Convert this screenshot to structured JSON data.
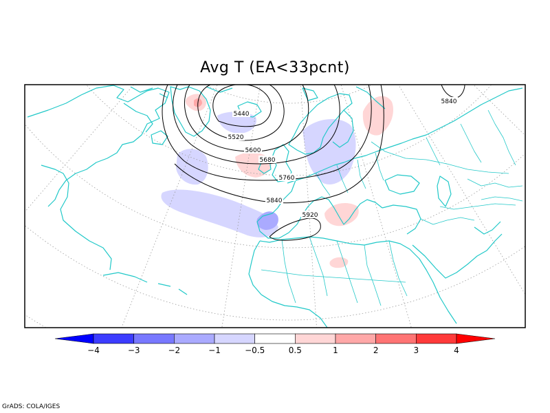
{
  "title": "Avg T (EA<33pcnt)",
  "credit": "GrADS: COLA/IGES",
  "colors": {
    "coast": "#20c8c8",
    "grid": "#9a9a9a",
    "contour": "#000000",
    "frame": "#000000"
  },
  "contours": [
    {
      "value": "5440",
      "label": "5440"
    },
    {
      "value": "5520",
      "label": "5520"
    },
    {
      "value": "5600",
      "label": "5600"
    },
    {
      "value": "5680",
      "label": "5680"
    },
    {
      "value": "5760",
      "label": "5760"
    },
    {
      "value": "5840",
      "label": "5840"
    },
    {
      "value": "5920",
      "label": "5920"
    },
    {
      "value": "5840b",
      "label": "5840"
    }
  ],
  "colorbar": {
    "bins": [
      {
        "color": "#0000ff"
      },
      {
        "color": "#3c3cff"
      },
      {
        "color": "#7878ff"
      },
      {
        "color": "#aaaaff"
      },
      {
        "color": "#d6d6ff"
      },
      {
        "color": "#ffffff"
      },
      {
        "color": "#ffd6d6"
      },
      {
        "color": "#ffa8a8"
      },
      {
        "color": "#ff7474"
      },
      {
        "color": "#ff3a3a"
      },
      {
        "color": "#ff0000"
      }
    ],
    "ticks": [
      "−4",
      "−3",
      "−2",
      "−1",
      "−0.5",
      "0.5",
      "1",
      "2",
      "3",
      "4"
    ]
  },
  "anomalies": [
    {
      "sign": "neg",
      "level": 1
    },
    {
      "sign": "neg",
      "level": 1
    },
    {
      "sign": "neg",
      "level": 1
    },
    {
      "sign": "neg",
      "level": 2
    },
    {
      "sign": "neg",
      "level": 1
    },
    {
      "sign": "pos",
      "level": 1
    },
    {
      "sign": "pos",
      "level": 1
    },
    {
      "sign": "pos",
      "level": 1
    },
    {
      "sign": "pos",
      "level": 1
    },
    {
      "sign": "pos",
      "level": 2
    },
    {
      "sign": "pos",
      "level": 1
    }
  ]
}
